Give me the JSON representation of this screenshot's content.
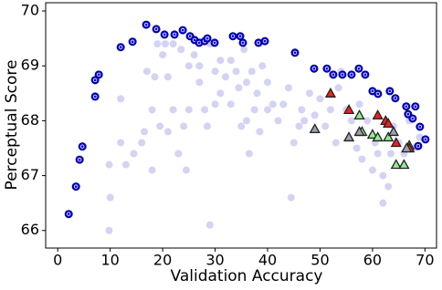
{
  "chart_data": {
    "type": "scatter",
    "x_label": "Validation Accuracy",
    "y_label": "Perceptual Score",
    "xlim": [
      -2.3,
      72.2
    ],
    "ylim": [
      65.68,
      70.15
    ],
    "xticks": [
      0,
      10,
      20,
      30,
      40,
      50,
      60,
      70
    ],
    "yticks": [
      66,
      67,
      68,
      69,
      70
    ],
    "series": [
      {
        "color": "#c8c8f0",
        "marker": "circle",
        "x": [
          9.8,
          10,
          9.8,
          12,
          12,
          13,
          14.5,
          16,
          16.5,
          17,
          18,
          18,
          18.5,
          19,
          19.5,
          20,
          20.5,
          21,
          21,
          22,
          22,
          23,
          23.5,
          24,
          24.5,
          25,
          25,
          26,
          27,
          27,
          28,
          28.5,
          29,
          29,
          30,
          30,
          31,
          31,
          32,
          33,
          33,
          34,
          34.5,
          35,
          35.5,
          36,
          36,
          36.5,
          37,
          37.5,
          38,
          38.5,
          39,
          40,
          40,
          41,
          42,
          43,
          44,
          44.5,
          45,
          46,
          46.5,
          47,
          48,
          49,
          50,
          51,
          52,
          53,
          53.5,
          54,
          55,
          56,
          57,
          57.5,
          58,
          59,
          60,
          60.5,
          61,
          62,
          62,
          63,
          63.5,
          64,
          65,
          66,
          67,
          68,
          69
        ],
        "values": [
          66.0,
          66.6,
          67.2,
          67.6,
          68.4,
          67.2,
          67.4,
          67.6,
          67.8,
          68.9,
          68.2,
          67.1,
          68.8,
          69.4,
          67.9,
          69.2,
          69.4,
          68.8,
          67.8,
          68.2,
          69.4,
          67.4,
          69.3,
          67.9,
          67.1,
          69.0,
          68.2,
          69.2,
          68.7,
          69.0,
          68.2,
          67.9,
          66.1,
          69.4,
          68.9,
          68.3,
          69.1,
          68.5,
          68.8,
          69.1,
          68.3,
          68.9,
          68.6,
          67.9,
          69.3,
          68.7,
          68.0,
          67.4,
          68.9,
          68.2,
          68.5,
          67.8,
          69.0,
          68.7,
          68.2,
          68.3,
          68.0,
          68.3,
          68.6,
          66.6,
          67.6,
          67.9,
          68.2,
          68.0,
          68.5,
          68.1,
          68.4,
          67.9,
          68.2,
          67.6,
          68.6,
          68.9,
          68.2,
          68.0,
          67.5,
          68.3,
          67.3,
          68.0,
          67.1,
          67.6,
          67.4,
          66.5,
          67.0,
          66.8,
          67.4,
          67.9,
          67.6,
          67.4,
          68.0,
          67.5,
          67.7
        ]
      },
      {
        "color": "#0000e0",
        "marker": "ring",
        "x": [
          2.09,
          3.48,
          4.17,
          4.7,
          7.13,
          7.13,
          7.83,
          12.0,
          14.26,
          16.87,
          18.78,
          20.35,
          22.26,
          23.83,
          25.22,
          26.09,
          26.96,
          28.0,
          29.91,
          28.52,
          33.39,
          34.78,
          35.3,
          38.26,
          39.48,
          45.22,
          48.87,
          51.3,
          52.52,
          54.26,
          56.0,
          57.39,
          58.61,
          60.0,
          61.04,
          63.3,
          64.35,
          66.43,
          68.17,
          66.78,
          67.65,
          69.04,
          70.09,
          68.7
        ],
        "values": [
          66.3,
          66.8,
          67.29,
          67.53,
          68.44,
          68.74,
          68.84,
          69.34,
          69.44,
          69.75,
          69.67,
          69.57,
          69.57,
          69.65,
          69.54,
          69.47,
          69.42,
          69.45,
          69.42,
          69.5,
          69.54,
          69.54,
          69.42,
          69.42,
          69.45,
          69.24,
          68.95,
          68.95,
          68.84,
          68.84,
          68.84,
          68.95,
          68.84,
          68.54,
          68.49,
          68.54,
          68.41,
          68.26,
          68.26,
          68.12,
          68.04,
          67.89,
          67.66,
          67.54
        ]
      },
      {
        "color": "#90ee90",
        "marker": "triangle",
        "x": [
          57.5,
          58,
          60,
          61,
          63,
          64.5,
          66,
          67
        ],
        "values": [
          68.1,
          67.8,
          67.75,
          67.7,
          67.7,
          67.2,
          67.2,
          67.55
        ]
      },
      {
        "color": "#ee2020",
        "marker": "triangle",
        "x": [
          52,
          55.5,
          61,
          62.5,
          63,
          64.5,
          67
        ],
        "values": [
          68.5,
          68.2,
          68.1,
          68.0,
          67.95,
          67.6,
          67.5
        ]
      },
      {
        "color": "#9aa0b0",
        "marker": "triangle",
        "x": [
          49,
          55.5,
          57.5,
          64,
          66.5
        ],
        "values": [
          67.85,
          67.7,
          67.8,
          67.8,
          67.5
        ]
      }
    ]
  }
}
